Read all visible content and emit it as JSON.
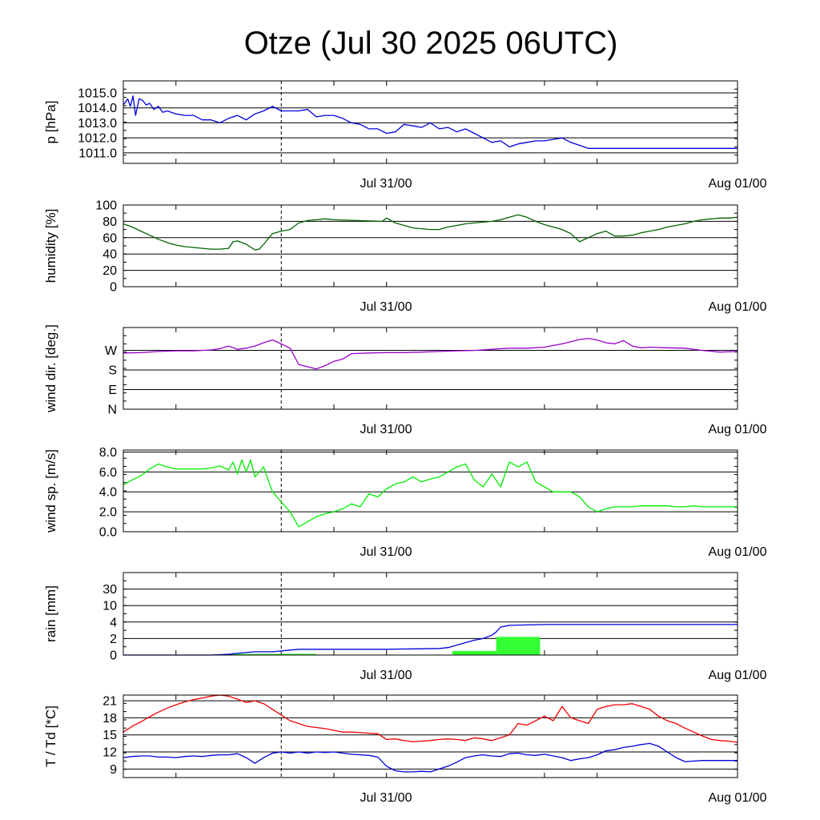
{
  "title": "Otze (Jul 30 2025 06UTC)",
  "x_labels": [
    "Jul 31/00",
    "Aug 01/00"
  ],
  "chart_data": [
    {
      "type": "line",
      "ylabel": "p [hPa]",
      "ylim": [
        1010.3,
        1015.8
      ],
      "yticks": [
        1011.0,
        1012.0,
        1013.0,
        1014.0,
        1015.0
      ],
      "ytick_labels": [
        "1011.0",
        "1012.0",
        "1013.0",
        "1014.0",
        "1015.0"
      ],
      "x_hours": [
        0,
        0.5,
        0.8,
        1.1,
        1.4,
        1.8,
        2.2,
        2.6,
        3,
        3.5,
        4,
        4.5,
        5,
        6,
        7,
        8,
        9,
        10,
        11,
        12,
        13,
        14,
        15,
        16,
        17,
        18,
        19,
        20,
        21,
        22,
        23,
        24,
        25,
        26,
        27,
        28,
        29,
        30,
        31,
        32,
        33,
        34,
        35,
        36,
        37,
        38,
        39,
        40,
        41,
        42,
        43,
        44,
        45,
        46,
        47,
        48,
        49,
        50,
        51,
        52,
        53,
        54,
        55,
        56,
        57,
        58,
        59,
        60,
        61,
        62,
        63,
        64,
        65,
        66,
        66.5,
        67,
        68,
        69,
        70
      ],
      "series": [
        {
          "color": "#0000dd",
          "values": [
            1014.2,
            1014.6,
            1014.1,
            1014.8,
            1013.5,
            1014.6,
            1014.5,
            1014.2,
            1014.3,
            1013.9,
            1014.1,
            1013.7,
            1013.8,
            1013.6,
            1013.5,
            1013.5,
            1013.2,
            1013.2,
            1013.0,
            1013.3,
            1013.5,
            1013.2,
            1013.6,
            1013.8,
            1014.1,
            1013.8,
            1013.8,
            1013.8,
            1013.9,
            1013.4,
            1013.5,
            1013.5,
            1013.3,
            1013.0,
            1012.9,
            1012.6,
            1012.6,
            1012.3,
            1012.4,
            1012.9,
            1012.8,
            1012.7,
            1013.0,
            1012.6,
            1012.7,
            1012.4,
            1012.6,
            1012.3,
            1012.0,
            1011.7,
            1011.8,
            1011.4,
            1011.6,
            1011.7,
            1011.8,
            1011.8,
            1011.9,
            1012.0,
            1011.7,
            1011.5,
            1011.3,
            1011.3,
            1011.3,
            1011.3,
            1011.3,
            1011.3,
            1011.3,
            1011.3,
            1011.3,
            1011.3,
            1011.3,
            1011.3,
            1011.3,
            1011.3,
            1011.3,
            1011.3,
            1011.3,
            1011.3,
            1011.3
          ]
        }
      ]
    },
    {
      "type": "line",
      "ylabel": "humidity [%]",
      "ylim": [
        0,
        100
      ],
      "yticks": [
        0,
        20,
        40,
        60,
        80,
        100
      ],
      "ytick_labels": [
        "0",
        "20",
        "40",
        "60",
        "80",
        "100"
      ],
      "x_hours": [
        0,
        1,
        2,
        3,
        4,
        5,
        6,
        7,
        8,
        9,
        10,
        11,
        12,
        12.5,
        13,
        14,
        15,
        15.5,
        16,
        17,
        18,
        19,
        20,
        21,
        22,
        23,
        24,
        29.5,
        30,
        31,
        32,
        33,
        34,
        35,
        36,
        37,
        38,
        39,
        40,
        41,
        42,
        43,
        44,
        45,
        46,
        47,
        48,
        49,
        50,
        51,
        52,
        53,
        54,
        55,
        56,
        57,
        58,
        59,
        60,
        61,
        62,
        63,
        64,
        65,
        66,
        67,
        68,
        69,
        70
      ],
      "series": [
        {
          "color": "#006400",
          "values": [
            77,
            73,
            68,
            63,
            58,
            54,
            51,
            49,
            48,
            47,
            46,
            46,
            47,
            55,
            56,
            52,
            45,
            46,
            52,
            65,
            68,
            70,
            78,
            81,
            82,
            83,
            82,
            80,
            84,
            78,
            75,
            72,
            71,
            70,
            70,
            73,
            75,
            77,
            78,
            79,
            80,
            82,
            85,
            88,
            85,
            80,
            76,
            73,
            70,
            65,
            55,
            60,
            65,
            68,
            62,
            62,
            63,
            66,
            68,
            70,
            73,
            75,
            77,
            80,
            82,
            83,
            84,
            84,
            85
          ]
        }
      ]
    },
    {
      "type": "line",
      "ylabel": "wind dir. [deg.]",
      "ylim": [
        0,
        375
      ],
      "yticks": [
        0,
        90,
        180,
        270
      ],
      "ytick_labels": [
        "N",
        "E",
        "S",
        "W"
      ],
      "x_hours": [
        0,
        2,
        4,
        6,
        8,
        10,
        11,
        12,
        13,
        14,
        15,
        16,
        17,
        18,
        19,
        20,
        21,
        22,
        23,
        24,
        25,
        26,
        28,
        30,
        32,
        34,
        36,
        38,
        40,
        42,
        44,
        46,
        48,
        50,
        51,
        52,
        53,
        54,
        55,
        56,
        57,
        58,
        59,
        60,
        62,
        64,
        66,
        68,
        70
      ],
      "series": [
        {
          "color": "#9900cc",
          "values": [
            258,
            260,
            265,
            268,
            268,
            272,
            278,
            290,
            275,
            280,
            290,
            305,
            318,
            300,
            280,
            205,
            195,
            185,
            200,
            220,
            230,
            255,
            258,
            260,
            260,
            262,
            265,
            268,
            270,
            275,
            280,
            280,
            285,
            300,
            310,
            320,
            325,
            318,
            305,
            300,
            315,
            290,
            282,
            285,
            282,
            280,
            270,
            262,
            265
          ]
        }
      ]
    },
    {
      "type": "line",
      "ylabel": "wind sp. [m/s]",
      "ylim": [
        0,
        8.2
      ],
      "yticks": [
        0,
        2,
        4,
        6,
        8
      ],
      "ytick_labels": [
        "0.0",
        "2.0",
        "4.0",
        "6.0",
        "8.0"
      ],
      "x_hours": [
        0,
        1,
        2,
        3,
        4,
        5,
        6,
        7,
        8,
        9,
        10,
        11,
        12,
        12.5,
        13,
        13.5,
        14,
        14.5,
        15,
        15.5,
        16,
        16.5,
        17,
        18,
        19,
        20,
        21,
        22,
        23,
        24,
        25,
        26,
        27,
        28,
        29,
        30,
        31,
        32,
        33,
        34,
        35,
        36,
        37,
        38,
        39,
        40,
        41,
        42,
        43,
        44,
        45,
        46,
        47,
        48,
        49,
        50,
        51,
        52,
        53,
        54,
        55,
        56,
        57,
        58,
        59,
        60,
        61,
        62,
        63,
        64,
        65,
        66,
        67,
        68,
        69,
        70
      ],
      "series": [
        {
          "color": "#00ee00",
          "values": [
            4.7,
            5.2,
            5.6,
            6.3,
            6.8,
            6.5,
            6.3,
            6.3,
            6.3,
            6.3,
            6.4,
            6.6,
            6.2,
            7.0,
            5.8,
            7.2,
            6.0,
            7.2,
            5.5,
            6.0,
            6.5,
            5.2,
            4.0,
            3.0,
            2.0,
            0.5,
            1.0,
            1.5,
            1.8,
            2.0,
            2.3,
            2.8,
            2.5,
            3.8,
            3.5,
            4.3,
            4.8,
            5.0,
            5.5,
            5.0,
            5.3,
            5.5,
            6.0,
            6.5,
            6.8,
            5.2,
            4.5,
            5.8,
            4.5,
            7.0,
            6.5,
            7.0,
            5.0,
            4.5,
            4.0,
            4.0,
            4.0,
            3.5,
            2.5,
            2.0,
            2.3,
            2.5,
            2.5,
            2.5,
            2.6,
            2.6,
            2.6,
            2.6,
            2.5,
            2.5,
            2.6,
            2.5,
            2.5,
            2.5,
            2.5,
            2.5
          ]
        }
      ]
    },
    {
      "type": "bar+line",
      "ylabel": "rain [mm]",
      "yticks": [
        0,
        2,
        4,
        10,
        30
      ],
      "ytick_labels": [
        "0",
        "2",
        "4",
        "10",
        "30"
      ],
      "scale": "piecewise: 0,2,4,10,30 at equal spacing",
      "bars": [
        {
          "color": "#33ff33",
          "x_start": 12,
          "x_end": 22,
          "value": 0.15
        },
        {
          "color": "#33ff33",
          "x_start": 37.5,
          "x_end": 42.5,
          "value": 0.5
        },
        {
          "color": "#33ff33",
          "x_start": 42.5,
          "x_end": 47.5,
          "value": 2.2
        }
      ],
      "x_hours": [
        0,
        10,
        11,
        12,
        13,
        14,
        15,
        16,
        17,
        18,
        19,
        20,
        21,
        22,
        24,
        30,
        36,
        37,
        38,
        39,
        40,
        41,
        42,
        42.5,
        43,
        44,
        46,
        48,
        50,
        55,
        60,
        65,
        70
      ],
      "series": [
        {
          "color": "#0000dd",
          "values": [
            0,
            0,
            0.05,
            0.1,
            0.2,
            0.3,
            0.4,
            0.4,
            0.4,
            0.5,
            0.6,
            0.7,
            0.7,
            0.7,
            0.7,
            0.7,
            0.8,
            0.9,
            1.2,
            1.5,
            1.8,
            2.0,
            2.4,
            2.8,
            3.4,
            3.6,
            3.65,
            3.7,
            3.7,
            3.7,
            3.7,
            3.7,
            3.7
          ]
        }
      ]
    },
    {
      "type": "line",
      "ylabel": "T / Td [*C]",
      "ylim": [
        7.5,
        22
      ],
      "yticks": [
        9,
        12,
        15,
        18,
        21
      ],
      "ytick_labels": [
        "9",
        "12",
        "15",
        "18",
        "21"
      ],
      "x_hours": [
        0,
        1,
        2,
        3,
        4,
        5,
        6,
        7,
        8,
        9,
        10,
        11,
        12,
        13,
        14,
        15,
        16,
        17,
        18,
        19,
        20,
        21,
        22,
        23,
        24,
        25,
        26,
        27,
        28,
        29,
        30,
        31,
        32,
        33,
        34,
        35,
        36,
        37,
        38,
        39,
        40,
        41,
        42,
        43,
        44,
        45,
        46,
        47,
        48,
        49,
        50,
        51,
        52,
        53,
        54,
        55,
        56,
        57,
        58,
        59,
        60,
        61,
        62,
        63,
        64,
        65,
        66,
        67,
        68,
        69,
        70
      ],
      "series": [
        {
          "color": "#ee0000",
          "values": [
            15.5,
            16.5,
            17.3,
            18.2,
            19.0,
            19.7,
            20.3,
            20.8,
            21.2,
            21.5,
            21.8,
            22.0,
            21.8,
            21.3,
            20.7,
            21.0,
            20.5,
            19.5,
            18.5,
            17.5,
            17.0,
            16.5,
            16.3,
            16.1,
            15.8,
            15.5,
            15.5,
            15.4,
            15.3,
            15.2,
            14.2,
            14.3,
            14.0,
            13.8,
            13.9,
            14.0,
            14.2,
            14.3,
            14.2,
            14.0,
            14.5,
            14.3,
            14.0,
            14.5,
            15.0,
            17.0,
            16.7,
            17.5,
            18.3,
            17.5,
            20.0,
            18.0,
            17.5,
            17.0,
            19.5,
            20.0,
            20.3,
            20.3,
            20.5,
            20.0,
            19.5,
            18.3,
            17.5,
            17.0,
            16.2,
            15.5,
            14.8,
            14.2,
            14.0,
            13.9,
            13.7
          ]
        },
        {
          "color": "#0000dd",
          "values": [
            11.0,
            11.2,
            11.3,
            11.3,
            11.1,
            11.1,
            11.0,
            11.2,
            11.3,
            11.2,
            11.4,
            11.5,
            11.5,
            11.7,
            11.0,
            10.0,
            11.0,
            11.8,
            12.0,
            11.8,
            12.0,
            11.8,
            12.0,
            11.9,
            12.0,
            11.8,
            11.6,
            11.5,
            11.4,
            11.1,
            9.5,
            8.7,
            8.5,
            8.5,
            8.6,
            8.5,
            9.0,
            9.5,
            10.2,
            11.0,
            11.3,
            11.5,
            11.3,
            11.2,
            11.7,
            11.8,
            11.5,
            11.4,
            11.6,
            11.3,
            11.0,
            10.5,
            10.8,
            11.0,
            11.5,
            12.2,
            12.4,
            12.8,
            13.0,
            13.3,
            13.5,
            13.0,
            12.0,
            11.0,
            10.3,
            10.4,
            10.5,
            10.5,
            10.5,
            10.5,
            10.5
          ]
        }
      ]
    }
  ]
}
